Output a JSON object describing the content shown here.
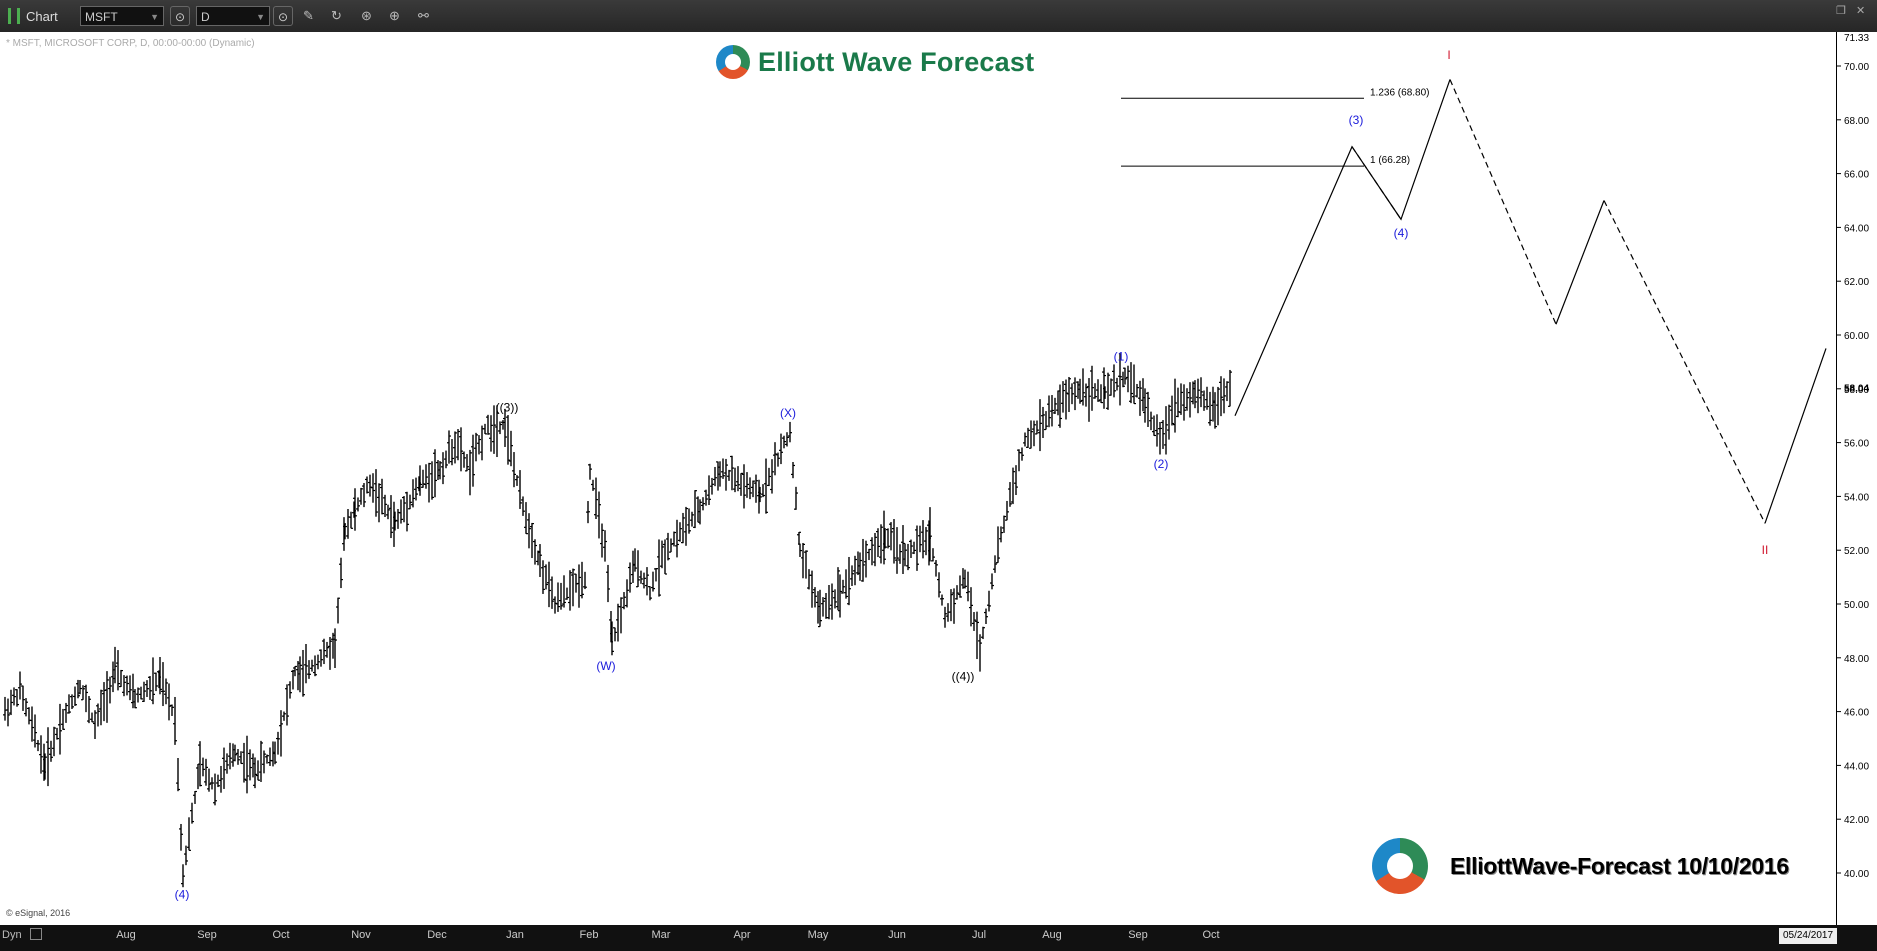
{
  "toolbar": {
    "title": "Chart",
    "symbol": "MSFT",
    "interval": "D",
    "tool_icons": [
      "pencil-icon",
      "refresh-icon",
      "play-icon",
      "zoom-icon",
      "link-icon"
    ]
  },
  "header": {
    "symbol_label": "* MSFT, MICROSOFT CORP, D, 00:00-00:00 (Dynamic)",
    "logo_text": "Elliott Wave Forecast"
  },
  "footer": {
    "copyright": "© eSignal, 2016",
    "watermark": "ElliottWave-Forecast 10/10/2016",
    "dyn_label": "Dyn",
    "end_date": "05/24/2017"
  },
  "colors": {
    "price_bars": "#000000",
    "wave_label_blue": "#1a1adb",
    "wave_label_black": "#000000",
    "wave_label_red": "#d0142c",
    "brand_green": "#1a7a4a"
  },
  "chart_data": {
    "type": "ohlc",
    "title": "",
    "xlabel": "",
    "ylabel": "",
    "x_ticks": [
      "Aug",
      "Sep",
      "Oct",
      "Nov",
      "Dec",
      "Jan",
      "Feb",
      "Mar",
      "Apr",
      "May",
      "Jun",
      "Jul",
      "Aug",
      "Sep",
      "Oct"
    ],
    "y_ticks": [
      "40.00",
      "42.00",
      "44.00",
      "46.00",
      "48.00",
      "50.00",
      "52.00",
      "54.00",
      "56.00",
      "58.00",
      "60.00",
      "62.00",
      "64.00",
      "66.00",
      "68.00",
      "70.00"
    ],
    "ylim": [
      39.0,
      71.3
    ],
    "axis_top_label": "71.33",
    "last_price_label": "58.04",
    "price_path": [
      {
        "x": "Jul",
        "y": 46.0
      },
      {
        "x": "Jul",
        "y": 46.8
      },
      {
        "x": "Jul",
        "y": 44.0
      },
      {
        "x": "Jul",
        "y": 45.5
      },
      {
        "x": "Aug",
        "y": 47.0
      },
      {
        "x": "Aug",
        "y": 45.5
      },
      {
        "x": "Aug",
        "y": 47.5
      },
      {
        "x": "Aug",
        "y": 46.5
      },
      {
        "x": "Aug",
        "y": 47.2
      },
      {
        "x": "Aug",
        "y": 45.8
      },
      {
        "x": "Aug",
        "y": 40.0
      },
      {
        "x": "Sep",
        "y": 44.0
      },
      {
        "x": "Sep",
        "y": 43.2
      },
      {
        "x": "Sep",
        "y": 44.5
      },
      {
        "x": "Sep",
        "y": 43.8
      },
      {
        "x": "Oct",
        "y": 44.5
      },
      {
        "x": "Oct",
        "y": 47.5
      },
      {
        "x": "Oct",
        "y": 47.3
      },
      {
        "x": "Oct",
        "y": 48.5
      },
      {
        "x": "Oct",
        "y": 52.8
      },
      {
        "x": "Nov",
        "y": 53.5
      },
      {
        "x": "Nov",
        "y": 54.5
      },
      {
        "x": "Nov",
        "y": 53.0
      },
      {
        "x": "Nov",
        "y": 54.5
      },
      {
        "x": "Dec",
        "y": 55.0
      },
      {
        "x": "Dec",
        "y": 56.0
      },
      {
        "x": "Dec",
        "y": 55.0
      },
      {
        "x": "Dec",
        "y": 56.5
      },
      {
        "x": "Jan",
        "y": 56.7
      },
      {
        "x": "Jan",
        "y": 54.0
      },
      {
        "x": "Jan",
        "y": 51.5
      },
      {
        "x": "Jan",
        "y": 50.0
      },
      {
        "x": "Feb",
        "y": 51.0
      },
      {
        "x": "Feb",
        "y": 55.0
      },
      {
        "x": "Feb",
        "y": 52.0
      },
      {
        "x": "Feb",
        "y": 48.5
      },
      {
        "x": "Mar",
        "y": 51.5
      },
      {
        "x": "Mar",
        "y": 50.5
      },
      {
        "x": "Mar",
        "y": 52.0
      },
      {
        "x": "Apr",
        "y": 53.5
      },
      {
        "x": "Apr",
        "y": 55.0
      },
      {
        "x": "Apr",
        "y": 54.0
      },
      {
        "x": "Apr",
        "y": 56.4
      },
      {
        "x": "May",
        "y": 52.0
      },
      {
        "x": "May",
        "y": 49.7
      },
      {
        "x": "May",
        "y": 50.5
      },
      {
        "x": "May",
        "y": 51.5
      },
      {
        "x": "Jun",
        "y": 52.5
      },
      {
        "x": "Jun",
        "y": 51.8
      },
      {
        "x": "Jun",
        "y": 52.5
      },
      {
        "x": "Jun",
        "y": 49.5
      },
      {
        "x": "Jul",
        "y": 51.0
      },
      {
        "x": "Jul",
        "y": 48.3
      },
      {
        "x": "Jul",
        "y": 51.5
      },
      {
        "x": "Jul",
        "y": 54.0
      },
      {
        "x": "Jul",
        "y": 56.0
      },
      {
        "x": "Aug",
        "y": 57.5
      },
      {
        "x": "Aug",
        "y": 58.0
      },
      {
        "x": "Aug",
        "y": 57.8
      },
      {
        "x": "Sep",
        "y": 58.5
      },
      {
        "x": "Sep",
        "y": 57.5
      },
      {
        "x": "Sep",
        "y": 56.0
      },
      {
        "x": "Sep",
        "y": 57.5
      },
      {
        "x": "Oct",
        "y": 57.8
      },
      {
        "x": "Oct",
        "y": 57.3
      },
      {
        "x": "Oct",
        "y": 58.2
      }
    ],
    "projection_solid": [
      {
        "x": "Oct",
        "y": 57.0
      },
      {
        "x": "",
        "y": 67.0
      },
      {
        "x": "",
        "y": 64.3
      },
      {
        "x": "",
        "y": 69.5
      }
    ],
    "projection_dashed": [
      {
        "x": "",
        "y": 67.0
      },
      {
        "x": "",
        "y": 64.3
      }
    ],
    "projection_dashed_2": [
      {
        "x": "",
        "y": 69.5
      },
      {
        "x": "",
        "y": 60.4
      },
      {
        "x": "",
        "y": 65.0
      },
      {
        "x": "",
        "y": 53.0
      },
      {
        "x": "",
        "y": 59.5
      }
    ],
    "fib_levels": [
      {
        "label": "1.236 (68.80)",
        "value": 68.8
      },
      {
        "label": "1 (66.28)",
        "value": 66.28
      }
    ],
    "wave_labels": [
      {
        "text": "(4)",
        "x": "Aug",
        "y": 39.2,
        "color": "blue"
      },
      {
        "text": "((3))",
        "x": "Jan",
        "y": 57.3,
        "color": "black"
      },
      {
        "text": "(W)",
        "x": "Feb",
        "y": 47.7,
        "color": "blue"
      },
      {
        "text": "(X)",
        "x": "Apr",
        "y": 57.1,
        "color": "blue"
      },
      {
        "text": "((4))",
        "x": "Jul",
        "y": 47.3,
        "color": "black"
      },
      {
        "text": "(1)",
        "x": "Aug",
        "y": 59.2,
        "color": "blue"
      },
      {
        "text": "(2)",
        "x": "Sep",
        "y": 55.2,
        "color": "blue"
      },
      {
        "text": "(3)",
        "x": "",
        "y": 68.0,
        "color": "blue"
      },
      {
        "text": "(4)",
        "x": "",
        "y": 63.8,
        "color": "blue"
      },
      {
        "text": "I",
        "x": "",
        "y": 70.4,
        "color": "red"
      },
      {
        "text": "II",
        "x": "",
        "y": 52.0,
        "color": "red"
      }
    ]
  }
}
